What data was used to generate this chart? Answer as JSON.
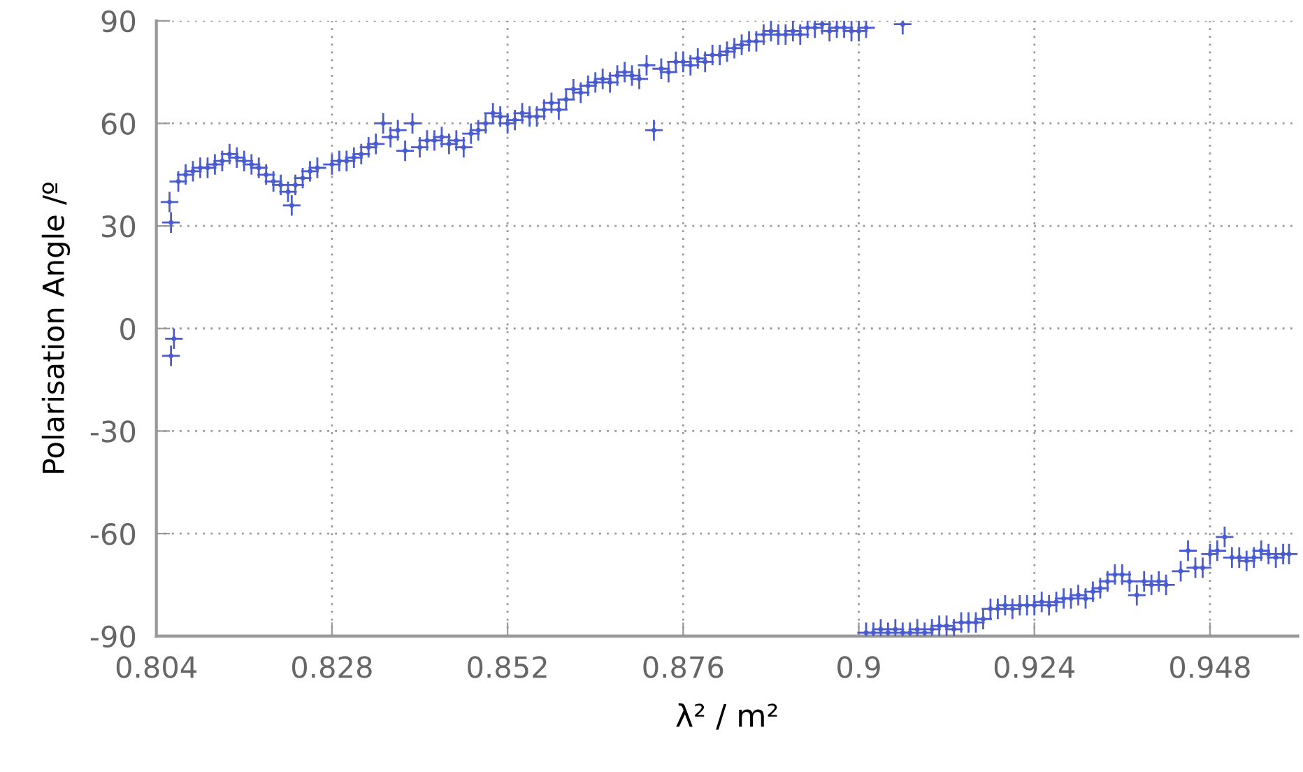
{
  "chart_data": {
    "type": "scatter",
    "xlabel": "λ² / m²",
    "ylabel": "Polarisation Angle /º",
    "xlim": [
      0.804,
      0.96
    ],
    "xticks": [
      0.804,
      0.828,
      0.852,
      0.876,
      0.9,
      0.924,
      0.948
    ],
    "ylim": [
      -90,
      90
    ],
    "yticks": [
      -90,
      -60,
      -30,
      0,
      30,
      60,
      90
    ],
    "grid": true,
    "marker": "none",
    "series": [
      {
        "color": "#4a5cd0",
        "x": [
          0.8058,
          0.806,
          0.8064,
          0.806,
          0.807,
          0.808,
          0.809,
          0.81,
          0.811,
          0.812,
          0.813,
          0.814,
          0.815,
          0.816,
          0.817,
          0.818,
          0.819,
          0.82,
          0.821,
          0.822,
          0.8225,
          0.823,
          0.824,
          0.825,
          0.826,
          0.828,
          0.829,
          0.83,
          0.831,
          0.832,
          0.833,
          0.834,
          0.835,
          0.836,
          0.837,
          0.838,
          0.839,
          0.84,
          0.841,
          0.842,
          0.843,
          0.844,
          0.845,
          0.846,
          0.847,
          0.848,
          0.849,
          0.85,
          0.851,
          0.852,
          0.853,
          0.854,
          0.855,
          0.856,
          0.857,
          0.858,
          0.859,
          0.86,
          0.861,
          0.862,
          0.863,
          0.864,
          0.865,
          0.866,
          0.867,
          0.868,
          0.869,
          0.87,
          0.871,
          0.872,
          0.873,
          0.874,
          0.875,
          0.876,
          0.877,
          0.878,
          0.879,
          0.88,
          0.881,
          0.882,
          0.883,
          0.884,
          0.885,
          0.886,
          0.887,
          0.888,
          0.889,
          0.89,
          0.891,
          0.892,
          0.893,
          0.894,
          0.895,
          0.896,
          0.897,
          0.898,
          0.899,
          0.9,
          0.901,
          0.906,
          0.901,
          0.902,
          0.903,
          0.904,
          0.905,
          0.906,
          0.907,
          0.908,
          0.909,
          0.91,
          0.911,
          0.912,
          0.913,
          0.914,
          0.915,
          0.916,
          0.917,
          0.918,
          0.919,
          0.92,
          0.921,
          0.922,
          0.923,
          0.924,
          0.925,
          0.926,
          0.927,
          0.928,
          0.929,
          0.93,
          0.931,
          0.932,
          0.933,
          0.934,
          0.935,
          0.936,
          0.937,
          0.938,
          0.939,
          0.94,
          0.941,
          0.942,
          0.944,
          0.945,
          0.946,
          0.947,
          0.948,
          0.949,
          0.95,
          0.951,
          0.952,
          0.953,
          0.954,
          0.955,
          0.956,
          0.957,
          0.958,
          0.9588
        ],
        "values": [
          37,
          31,
          -3,
          -8,
          43,
          45,
          46,
          47,
          47,
          48,
          49,
          51,
          50,
          49,
          48,
          47,
          45,
          43,
          42,
          40,
          36,
          42,
          44,
          46,
          47,
          48,
          49,
          49,
          50,
          51,
          53,
          54,
          60,
          56,
          58,
          52,
          60,
          53,
          55,
          55,
          56,
          54,
          55,
          53,
          57,
          58,
          60,
          63,
          62,
          60,
          61,
          63,
          62,
          62,
          64,
          66,
          64,
          67,
          70,
          69,
          71,
          72,
          73,
          72,
          74,
          75,
          74,
          73,
          77,
          58,
          76,
          75,
          78,
          78,
          77,
          79,
          78,
          80,
          80,
          81,
          82,
          83,
          84,
          84,
          86,
          87,
          86,
          86,
          87,
          86,
          88,
          88,
          89,
          87,
          88,
          88,
          87,
          87,
          88,
          89,
          -89,
          -89,
          -88,
          -89,
          -88,
          -89,
          -89,
          -88,
          -89,
          -88,
          -87,
          -87,
          -88,
          -86,
          -86,
          -86,
          -85,
          -82,
          -82,
          -81,
          -82,
          -81,
          -81,
          -81,
          -80,
          -81,
          -80,
          -79,
          -79,
          -78,
          -79,
          -77,
          -76,
          -74,
          -72,
          -72,
          -74,
          -78,
          -74,
          -75,
          -74,
          -75,
          -71,
          -65,
          -70,
          -70,
          -66,
          -65,
          -61,
          -67,
          -67,
          -68,
          -67,
          -65,
          -66,
          -67,
          -66,
          -66
        ],
        "errors": [
          3,
          3,
          3,
          3,
          3,
          3,
          3,
          3,
          3,
          3,
          3,
          3,
          3,
          3,
          3,
          3,
          3,
          3,
          3,
          3,
          3,
          3,
          3,
          3,
          3,
          3,
          3,
          3,
          3,
          3,
          3,
          3,
          3,
          3,
          3,
          3,
          3,
          3,
          3,
          3,
          3,
          3,
          3,
          3,
          3,
          3,
          3,
          3,
          3,
          3,
          3,
          3,
          3,
          3,
          3,
          3,
          3,
          3,
          3,
          3,
          3,
          3,
          3,
          3,
          3,
          3,
          3,
          3,
          3,
          3,
          3,
          3,
          3,
          3,
          3,
          3,
          3,
          3,
          3,
          3,
          3,
          3,
          3,
          3,
          3,
          3,
          3,
          3,
          3,
          3,
          3,
          3,
          3,
          3,
          3,
          3,
          3,
          3,
          3,
          3,
          3,
          3,
          3,
          3,
          3,
          3,
          3,
          3,
          3,
          3,
          3,
          3,
          3,
          3,
          3,
          3,
          3,
          3,
          3,
          3,
          3,
          3,
          3,
          3,
          3,
          3,
          3,
          3,
          3,
          3,
          3,
          3,
          3,
          3,
          3,
          3,
          3,
          3,
          3,
          3,
          3,
          3,
          3,
          3,
          3,
          3,
          3,
          3,
          3,
          3,
          3,
          3,
          3,
          3,
          3,
          3,
          3,
          3
        ],
        "xerrors": [
          0.0012,
          0.0012,
          0.0012,
          0.0012,
          0.0012,
          0.0012,
          0.0012,
          0.0012,
          0.0012,
          0.0012,
          0.0012,
          0.0012,
          0.0012,
          0.0012,
          0.0012,
          0.0012,
          0.0012,
          0.0012,
          0.0012,
          0.0012,
          0.0012,
          0.0012,
          0.0012,
          0.0012,
          0.0012,
          0.0012,
          0.0012,
          0.0012,
          0.0012,
          0.0012,
          0.0012,
          0.0012,
          0.0012,
          0.0012,
          0.0012,
          0.0012,
          0.0012,
          0.0012,
          0.0012,
          0.0012,
          0.0012,
          0.0012,
          0.0012,
          0.0012,
          0.0012,
          0.0012,
          0.0012,
          0.0012,
          0.0012,
          0.0012,
          0.0012,
          0.0012,
          0.0012,
          0.0012,
          0.0012,
          0.0012,
          0.0012,
          0.0012,
          0.0012,
          0.0012,
          0.0012,
          0.0012,
          0.0012,
          0.0012,
          0.0012,
          0.0012,
          0.0012,
          0.0012,
          0.0012,
          0.0012,
          0.0012,
          0.0012,
          0.0012,
          0.0012,
          0.0012,
          0.0012,
          0.0012,
          0.0012,
          0.0012,
          0.0012,
          0.0012,
          0.0012,
          0.0012,
          0.0012,
          0.0012,
          0.0012,
          0.0012,
          0.0012,
          0.0012,
          0.0012,
          0.0012,
          0.0012,
          0.0012,
          0.0012,
          0.0012,
          0.0012,
          0.0012,
          0.0012,
          0.0012,
          0.0012,
          0.0012,
          0.0012,
          0.0012,
          0.0012,
          0.0012,
          0.0012,
          0.0012,
          0.0012,
          0.0012,
          0.0012,
          0.0012,
          0.0012,
          0.0012,
          0.0012,
          0.0012,
          0.0012,
          0.0012,
          0.0012,
          0.0012,
          0.0012,
          0.0012,
          0.0012,
          0.0012,
          0.0012,
          0.0012,
          0.0012,
          0.0012,
          0.0012,
          0.0012,
          0.0012,
          0.0012,
          0.0012,
          0.0012,
          0.0012,
          0.0012,
          0.0012,
          0.0012,
          0.0012,
          0.0012,
          0.0012,
          0.0012,
          0.0012,
          0.0012,
          0.0012,
          0.0012,
          0.0012,
          0.0012,
          0.0012,
          0.0012,
          0.0012,
          0.0012,
          0.0012,
          0.0012,
          0.0012,
          0.0012,
          0.0012,
          0.0012,
          0.0012
        ]
      }
    ]
  }
}
